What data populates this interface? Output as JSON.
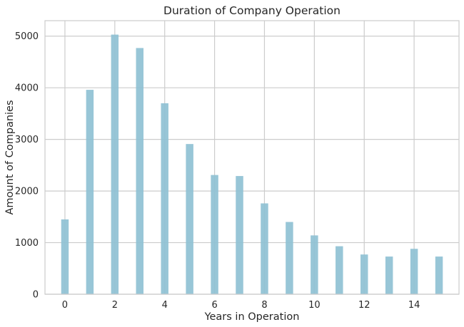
{
  "chart_data": {
    "type": "bar",
    "title": "Duration of Company Operation",
    "xlabel": "Years in Operation",
    "ylabel": "Amount of Companies",
    "x": [
      0,
      1,
      2,
      3,
      4,
      5,
      6,
      7,
      8,
      9,
      10,
      11,
      12,
      13,
      14,
      15
    ],
    "values": [
      1450,
      3960,
      5030,
      4770,
      3700,
      2910,
      2310,
      2290,
      1760,
      1400,
      1140,
      930,
      770,
      730,
      880,
      730
    ],
    "xlim": [
      -0.8,
      15.8
    ],
    "ylim": [
      0,
      5300
    ],
    "xticks": [
      "0",
      "2",
      "4",
      "6",
      "8",
      "10",
      "12",
      "14"
    ],
    "yticks": [
      "0",
      "1000",
      "2000",
      "3000",
      "4000",
      "5000"
    ],
    "grid": true,
    "bar_color": "#8fc1d4"
  }
}
